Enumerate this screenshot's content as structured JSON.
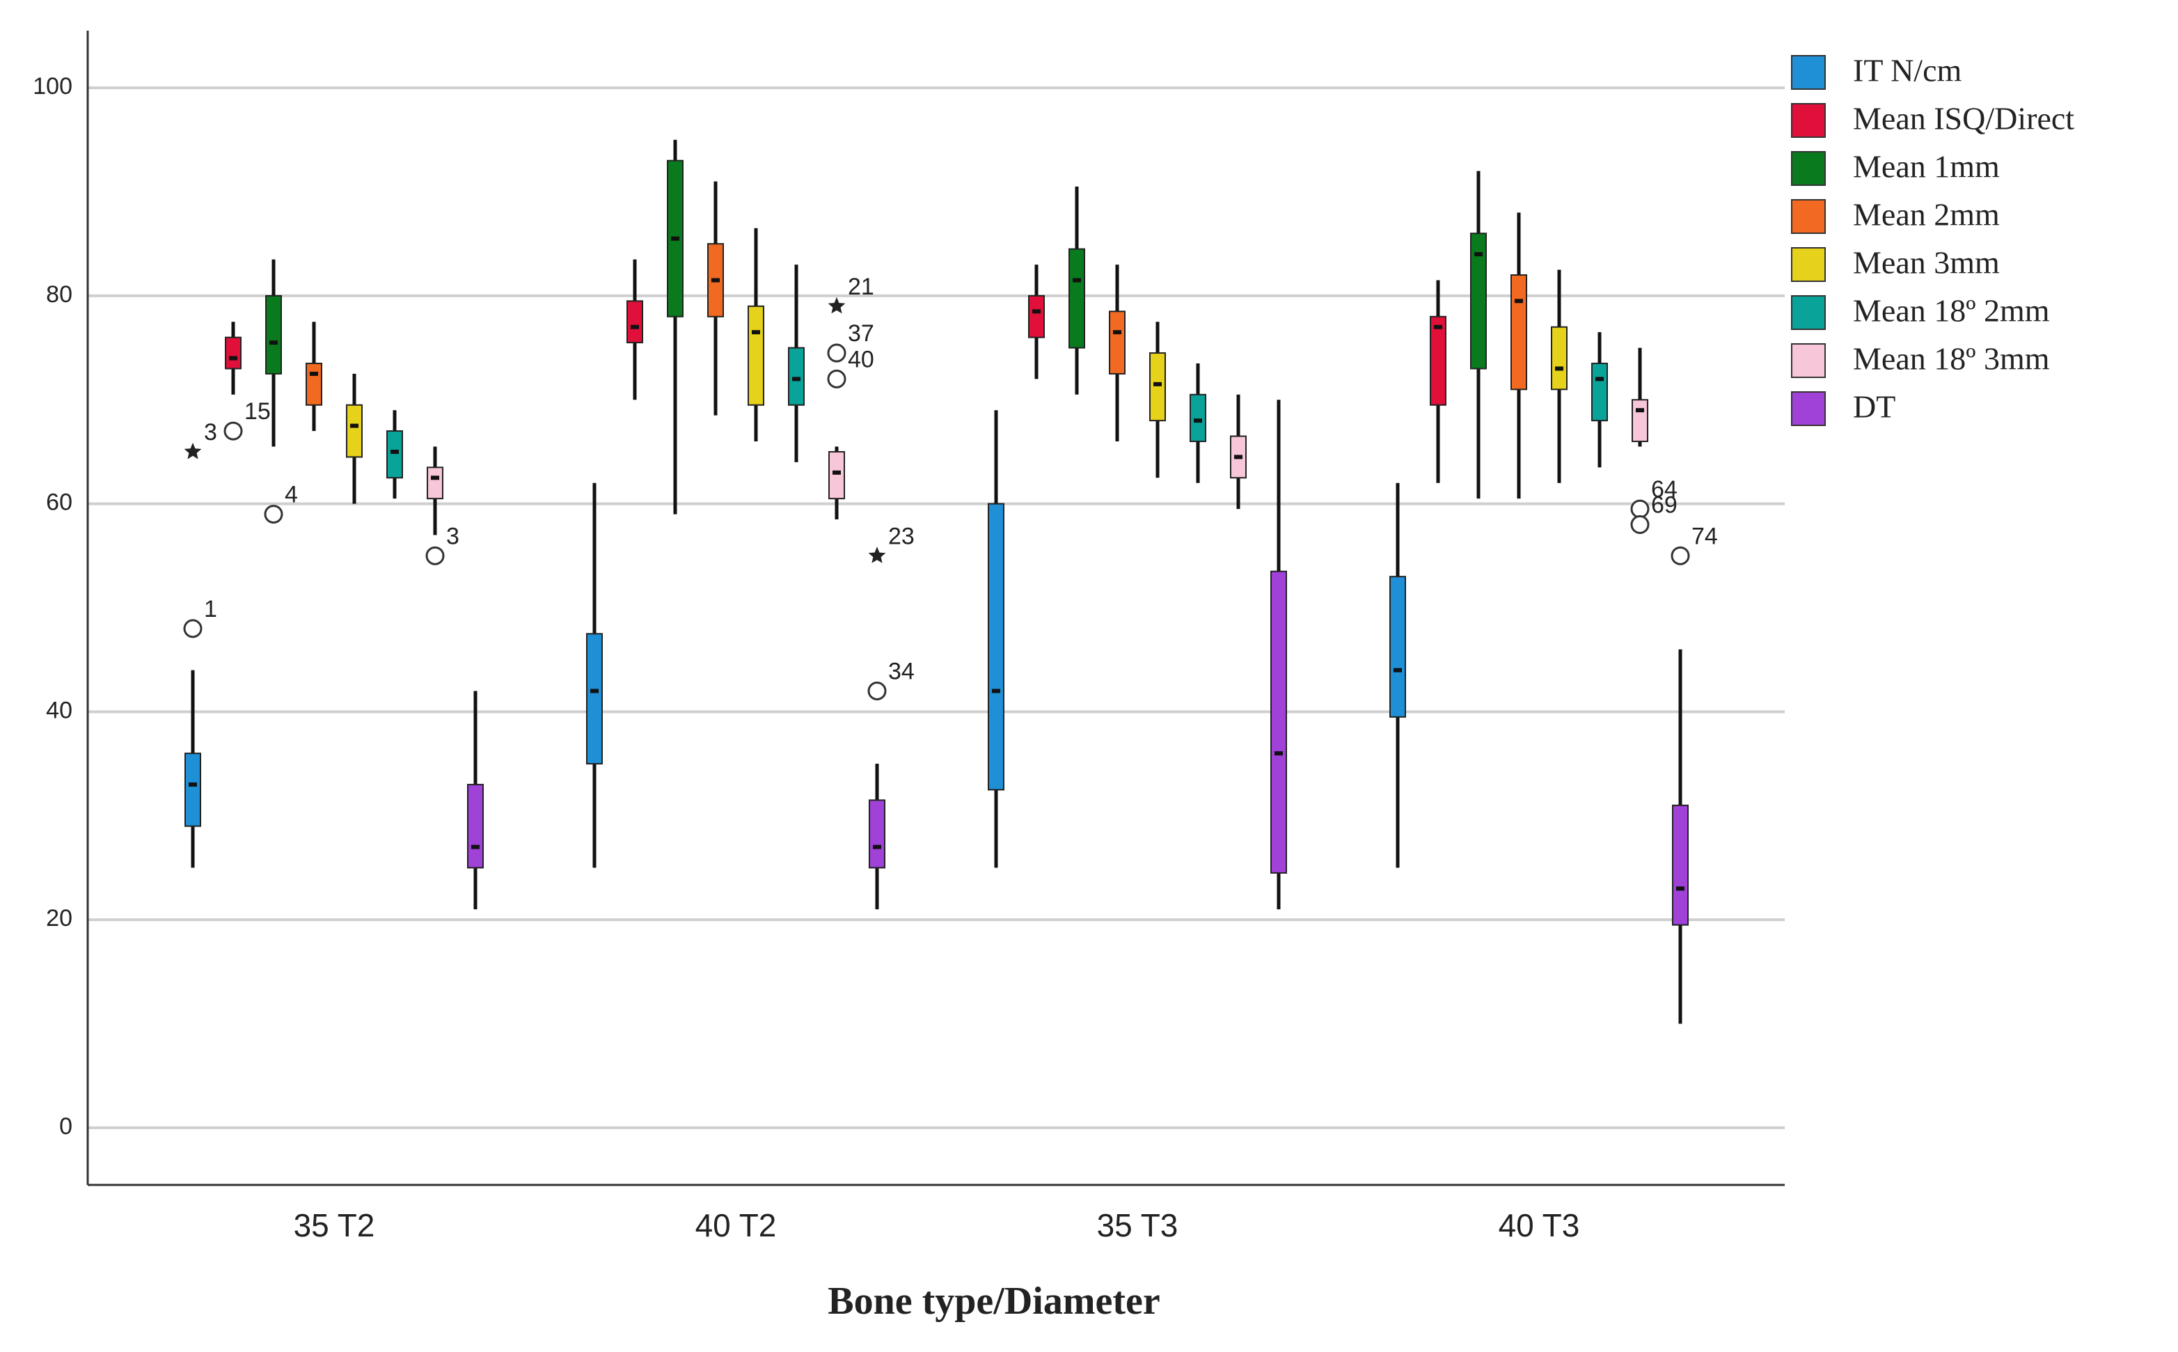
{
  "chart_data": {
    "type": "boxplot",
    "x_label": "Bone type/Diameter",
    "categories": [
      "35 T2",
      "40 T2",
      "35 T3",
      "40 T3"
    ],
    "ylim": [
      -5.5,
      105.5
    ],
    "yticks": [
      0,
      20,
      40,
      60,
      80,
      100
    ],
    "grid": true,
    "legend": "right",
    "series": [
      {
        "name": "IT N/cm",
        "color": "#1f8fd6",
        "boxes": [
          {
            "min": 25,
            "q1": 29,
            "median": 33,
            "q3": 36,
            "max": 44,
            "outliers": [
              {
                "value": 48,
                "label": "1",
                "marker": "circle"
              },
              {
                "value": 65,
                "label": "3",
                "marker": "star"
              }
            ]
          },
          {
            "min": 25,
            "q1": 35,
            "median": 42,
            "q3": 47.5,
            "max": 62,
            "outliers": []
          },
          {
            "min": 25,
            "q1": 32.5,
            "median": 42,
            "q3": 60,
            "max": 69,
            "outliers": []
          },
          {
            "min": 25,
            "q1": 39.5,
            "median": 44,
            "q3": 53,
            "max": 62,
            "outliers": []
          }
        ]
      },
      {
        "name": "Mean ISQ/Direct",
        "color": "#e0103a",
        "boxes": [
          {
            "min": 70.5,
            "q1": 73,
            "median": 74,
            "q3": 76,
            "max": 77.5,
            "outliers": [
              {
                "value": 67,
                "label": "15",
                "marker": "circle"
              }
            ]
          },
          {
            "min": 70,
            "q1": 75.5,
            "median": 77,
            "q3": 79.5,
            "max": 83.5,
            "outliers": []
          },
          {
            "min": 72,
            "q1": 76,
            "median": 78.5,
            "q3": 80,
            "max": 83,
            "outliers": []
          },
          {
            "min": 62,
            "q1": 69.5,
            "median": 77,
            "q3": 78,
            "max": 81.5,
            "outliers": []
          }
        ]
      },
      {
        "name": "Mean 1mm",
        "color": "#0a7a1e",
        "boxes": [
          {
            "min": 65.5,
            "q1": 72.5,
            "median": 75.5,
            "q3": 80,
            "max": 83.5,
            "outliers": [
              {
                "value": 59,
                "label": "4",
                "marker": "circle"
              }
            ]
          },
          {
            "min": 59,
            "q1": 78,
            "median": 85.5,
            "q3": 93,
            "max": 95,
            "outliers": []
          },
          {
            "min": 70.5,
            "q1": 75,
            "median": 81.5,
            "q3": 84.5,
            "max": 90.5,
            "outliers": []
          },
          {
            "min": 60.5,
            "q1": 73,
            "median": 84,
            "q3": 86,
            "max": 92,
            "outliers": []
          }
        ]
      },
      {
        "name": "Mean 2mm",
        "color": "#f26a21",
        "boxes": [
          {
            "min": 67,
            "q1": 69.5,
            "median": 72.5,
            "q3": 73.5,
            "max": 77.5,
            "outliers": []
          },
          {
            "min": 68.5,
            "q1": 78,
            "median": 81.5,
            "q3": 85,
            "max": 91,
            "outliers": []
          },
          {
            "min": 66,
            "q1": 72.5,
            "median": 76.5,
            "q3": 78.5,
            "max": 83,
            "outliers": []
          },
          {
            "min": 60.5,
            "q1": 71,
            "median": 79.5,
            "q3": 82,
            "max": 88,
            "outliers": []
          }
        ]
      },
      {
        "name": "Mean 3mm",
        "color": "#e6d21a",
        "boxes": [
          {
            "min": 60,
            "q1": 64.5,
            "median": 67.5,
            "q3": 69.5,
            "max": 72.5,
            "outliers": []
          },
          {
            "min": 66,
            "q1": 69.5,
            "median": 76.5,
            "q3": 79,
            "max": 86.5,
            "outliers": []
          },
          {
            "min": 62.5,
            "q1": 68,
            "median": 71.5,
            "q3": 74.5,
            "max": 77.5,
            "outliers": []
          },
          {
            "min": 62,
            "q1": 71,
            "median": 73,
            "q3": 77,
            "max": 82.5,
            "outliers": []
          }
        ]
      },
      {
        "name": "Mean 18º 2mm",
        "color": "#0aa39a",
        "boxes": [
          {
            "min": 60.5,
            "q1": 62.5,
            "median": 65,
            "q3": 67,
            "max": 69,
            "outliers": []
          },
          {
            "min": 64,
            "q1": 69.5,
            "median": 72,
            "q3": 75,
            "max": 83,
            "outliers": []
          },
          {
            "min": 62,
            "q1": 66,
            "median": 68,
            "q3": 70.5,
            "max": 73.5,
            "outliers": []
          },
          {
            "min": 63.5,
            "q1": 68,
            "median": 72,
            "q3": 73.5,
            "max": 76.5,
            "outliers": []
          }
        ]
      },
      {
        "name": "Mean 18º 3mm",
        "color": "#f7c6d8",
        "boxes": [
          {
            "min": 57,
            "q1": 60.5,
            "median": 62.5,
            "q3": 63.5,
            "max": 65.5,
            "outliers": [
              {
                "value": 55,
                "label": "3",
                "marker": "circle"
              }
            ]
          },
          {
            "min": 58.5,
            "q1": 60.5,
            "median": 63,
            "q3": 65,
            "max": 65.5,
            "outliers": [
              {
                "value": 79,
                "label": "21",
                "marker": "star"
              },
              {
                "value": 74.5,
                "label": "37",
                "marker": "circle"
              },
              {
                "value": 72,
                "label": "40",
                "marker": "circle"
              }
            ]
          },
          {
            "min": 59.5,
            "q1": 62.5,
            "median": 64.5,
            "q3": 66.5,
            "max": 70.5,
            "outliers": []
          },
          {
            "min": 65.5,
            "q1": 66,
            "median": 69,
            "q3": 70,
            "max": 75,
            "outliers": [
              {
                "value": 59.5,
                "label": "64",
                "marker": "circle"
              },
              {
                "value": 58,
                "label": "69",
                "marker": "circle"
              }
            ]
          }
        ]
      },
      {
        "name": "DT",
        "color": "#a041d8",
        "boxes": [
          {
            "min": 21,
            "q1": 25,
            "median": 27,
            "q3": 33,
            "max": 42,
            "outliers": []
          },
          {
            "min": 21,
            "q1": 25,
            "median": 27,
            "q3": 31.5,
            "max": 35,
            "outliers": [
              {
                "value": 55,
                "label": "23",
                "marker": "star"
              },
              {
                "value": 42,
                "label": "34",
                "marker": "circle"
              }
            ]
          },
          {
            "min": 21,
            "q1": 24.5,
            "median": 36,
            "q3": 53.5,
            "max": 70,
            "outliers": []
          },
          {
            "min": 10,
            "q1": 19.5,
            "median": 23,
            "q3": 31,
            "max": 46,
            "outliers": [
              {
                "value": 55,
                "label": "74",
                "marker": "circle"
              }
            ]
          }
        ]
      }
    ]
  }
}
